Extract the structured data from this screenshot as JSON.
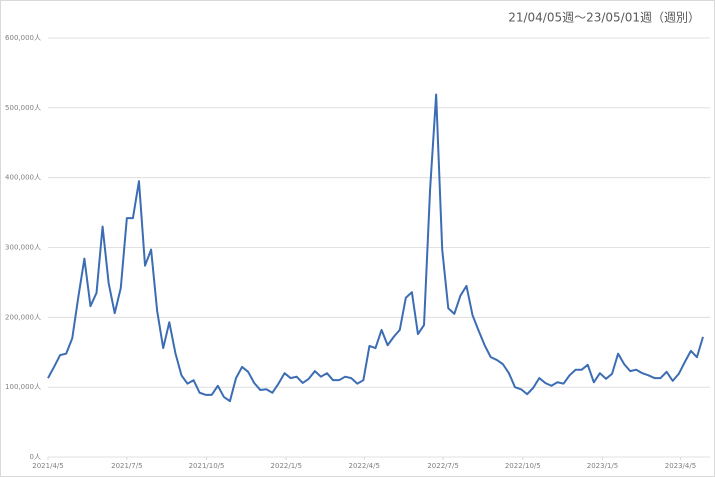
{
  "chart_data": {
    "type": "line",
    "title": "21/04/05週〜23/05/01週（週別）",
    "x": [
      "2021-04-05",
      "2021-04-12",
      "2021-04-19",
      "2021-04-26",
      "2021-05-03",
      "2021-05-10",
      "2021-05-17",
      "2021-05-24",
      "2021-05-31",
      "2021-06-07",
      "2021-06-14",
      "2021-06-21",
      "2021-06-28",
      "2021-07-05",
      "2021-07-12",
      "2021-07-19",
      "2021-07-26",
      "2021-08-02",
      "2021-08-09",
      "2021-08-16",
      "2021-08-23",
      "2021-08-30",
      "2021-09-06",
      "2021-09-13",
      "2021-09-20",
      "2021-09-27",
      "2021-10-04",
      "2021-10-11",
      "2021-10-18",
      "2021-10-25",
      "2021-11-01",
      "2021-11-08",
      "2021-11-15",
      "2021-11-22",
      "2021-11-29",
      "2021-12-06",
      "2021-12-13",
      "2021-12-20",
      "2021-12-27",
      "2022-01-03",
      "2022-01-10",
      "2022-01-17",
      "2022-01-24",
      "2022-01-31",
      "2022-02-07",
      "2022-02-14",
      "2022-02-21",
      "2022-02-28",
      "2022-03-07",
      "2022-03-14",
      "2022-03-21",
      "2022-03-28",
      "2022-04-04",
      "2022-04-11",
      "2022-04-18",
      "2022-04-25",
      "2022-05-02",
      "2022-05-09",
      "2022-05-16",
      "2022-05-23",
      "2022-05-30",
      "2022-06-06",
      "2022-06-13",
      "2022-06-20",
      "2022-06-27",
      "2022-07-04",
      "2022-07-11",
      "2022-07-18",
      "2022-07-25",
      "2022-08-01",
      "2022-08-08",
      "2022-08-15",
      "2022-08-22",
      "2022-08-29",
      "2022-09-05",
      "2022-09-12",
      "2022-09-19",
      "2022-09-26",
      "2022-10-03",
      "2022-10-10",
      "2022-10-17",
      "2022-10-24",
      "2022-10-31",
      "2022-11-07",
      "2022-11-14",
      "2022-11-21",
      "2022-11-28",
      "2022-12-05",
      "2022-12-12",
      "2022-12-19",
      "2022-12-26",
      "2023-01-02",
      "2023-01-09",
      "2023-01-16",
      "2023-01-23",
      "2023-01-30",
      "2023-02-06",
      "2023-02-13",
      "2023-02-20",
      "2023-02-27",
      "2023-03-06",
      "2023-03-13",
      "2023-03-20",
      "2023-03-27",
      "2023-04-03",
      "2023-04-10",
      "2023-04-17",
      "2023-04-24",
      "2023-05-01"
    ],
    "series": [
      {
        "color": "#3c6db4",
        "values": [
          113000,
          129000,
          146000,
          148000,
          170000,
          229000,
          284000,
          216000,
          235000,
          330000,
          249000,
          206000,
          242000,
          342000,
          342000,
          395000,
          274000,
          297000,
          209000,
          156000,
          193000,
          149000,
          117000,
          105000,
          110000,
          92000,
          89000,
          89000,
          102000,
          86000,
          80000,
          113000,
          129000,
          122000,
          106000,
          96000,
          97000,
          92000,
          105000,
          120000,
          113000,
          115000,
          106000,
          112000,
          123000,
          115000,
          120000,
          110000,
          110000,
          115000,
          113000,
          105000,
          110000,
          159000,
          156000,
          182000,
          160000,
          172000,
          182000,
          228000,
          236000,
          176000,
          189000,
          383000,
          519000,
          297000,
          213000,
          205000,
          231000,
          245000,
          203000,
          181000,
          160000,
          143000,
          139000,
          133000,
          120000,
          100000,
          97000,
          90000,
          99000,
          113000,
          106000,
          102000,
          107000,
          105000,
          117000,
          125000,
          125000,
          132000,
          107000,
          120000,
          112000,
          119000,
          148000,
          133000,
          123000,
          125000,
          120000,
          117000,
          113000,
          113000,
          122000,
          109000,
          119000,
          136000,
          152000,
          143000,
          172000
        ]
      }
    ],
    "xlim": [
      "2021-04-05",
      "2023-05-01"
    ],
    "xticks": [
      {
        "value": "2021-04-05",
        "label": "2021/4/5"
      },
      {
        "value": "2021-07-05",
        "label": "2021/7/5"
      },
      {
        "value": "2021-10-05",
        "label": "2021/10/5"
      },
      {
        "value": "2022-01-05",
        "label": "2022/1/5"
      },
      {
        "value": "2022-04-05",
        "label": "2022/4/5"
      },
      {
        "value": "2022-07-05",
        "label": "2022/7/5"
      },
      {
        "value": "2022-10-05",
        "label": "2022/10/5"
      },
      {
        "value": "2023-01-05",
        "label": "2023/1/5"
      },
      {
        "value": "2023-04-05",
        "label": "2023/4/5"
      }
    ],
    "ylim": [
      0,
      600000
    ],
    "yticks": [
      {
        "value": 0,
        "label": "0人"
      },
      {
        "value": 100000,
        "label": "100,000人"
      },
      {
        "value": 200000,
        "label": "200,000人"
      },
      {
        "value": 300000,
        "label": "300,000人"
      },
      {
        "value": 400000,
        "label": "400,000人"
      },
      {
        "value": 500000,
        "label": "500,000人"
      },
      {
        "value": 600000,
        "label": "600,000人"
      }
    ],
    "grid": true
  }
}
